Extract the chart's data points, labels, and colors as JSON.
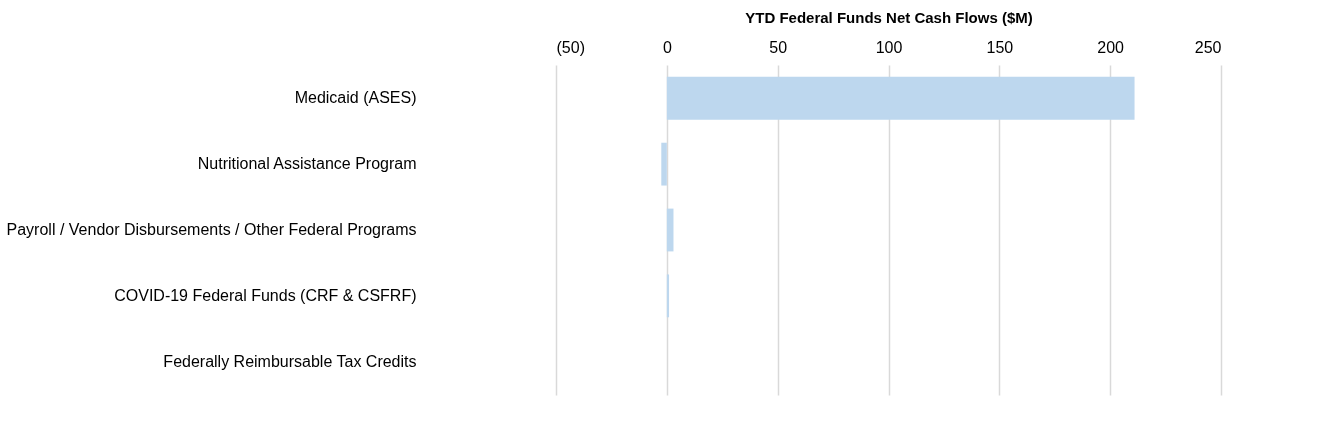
{
  "chart_data": {
    "type": "bar",
    "orientation": "horizontal",
    "xlabel": "YTD Federal Funds Net Cash Flows ($M)",
    "categories": [
      "Medicaid (ASES)",
      "Nutritional Assistance Program",
      "Payroll / Vendor Disbursements / Other Federal Programs",
      "COVID-19 Federal Funds (CRF & CSFRF)",
      "Federally Reimbursable Tax Credits"
    ],
    "values": [
      211,
      -2.5,
      3,
      1,
      0
    ],
    "color": "#bdd7ee",
    "xlim": [
      -50,
      250
    ],
    "xticks": [
      {
        "value": -50,
        "label": "(50)"
      },
      0,
      50,
      100,
      150,
      200,
      250
    ],
    "grid": "x"
  }
}
